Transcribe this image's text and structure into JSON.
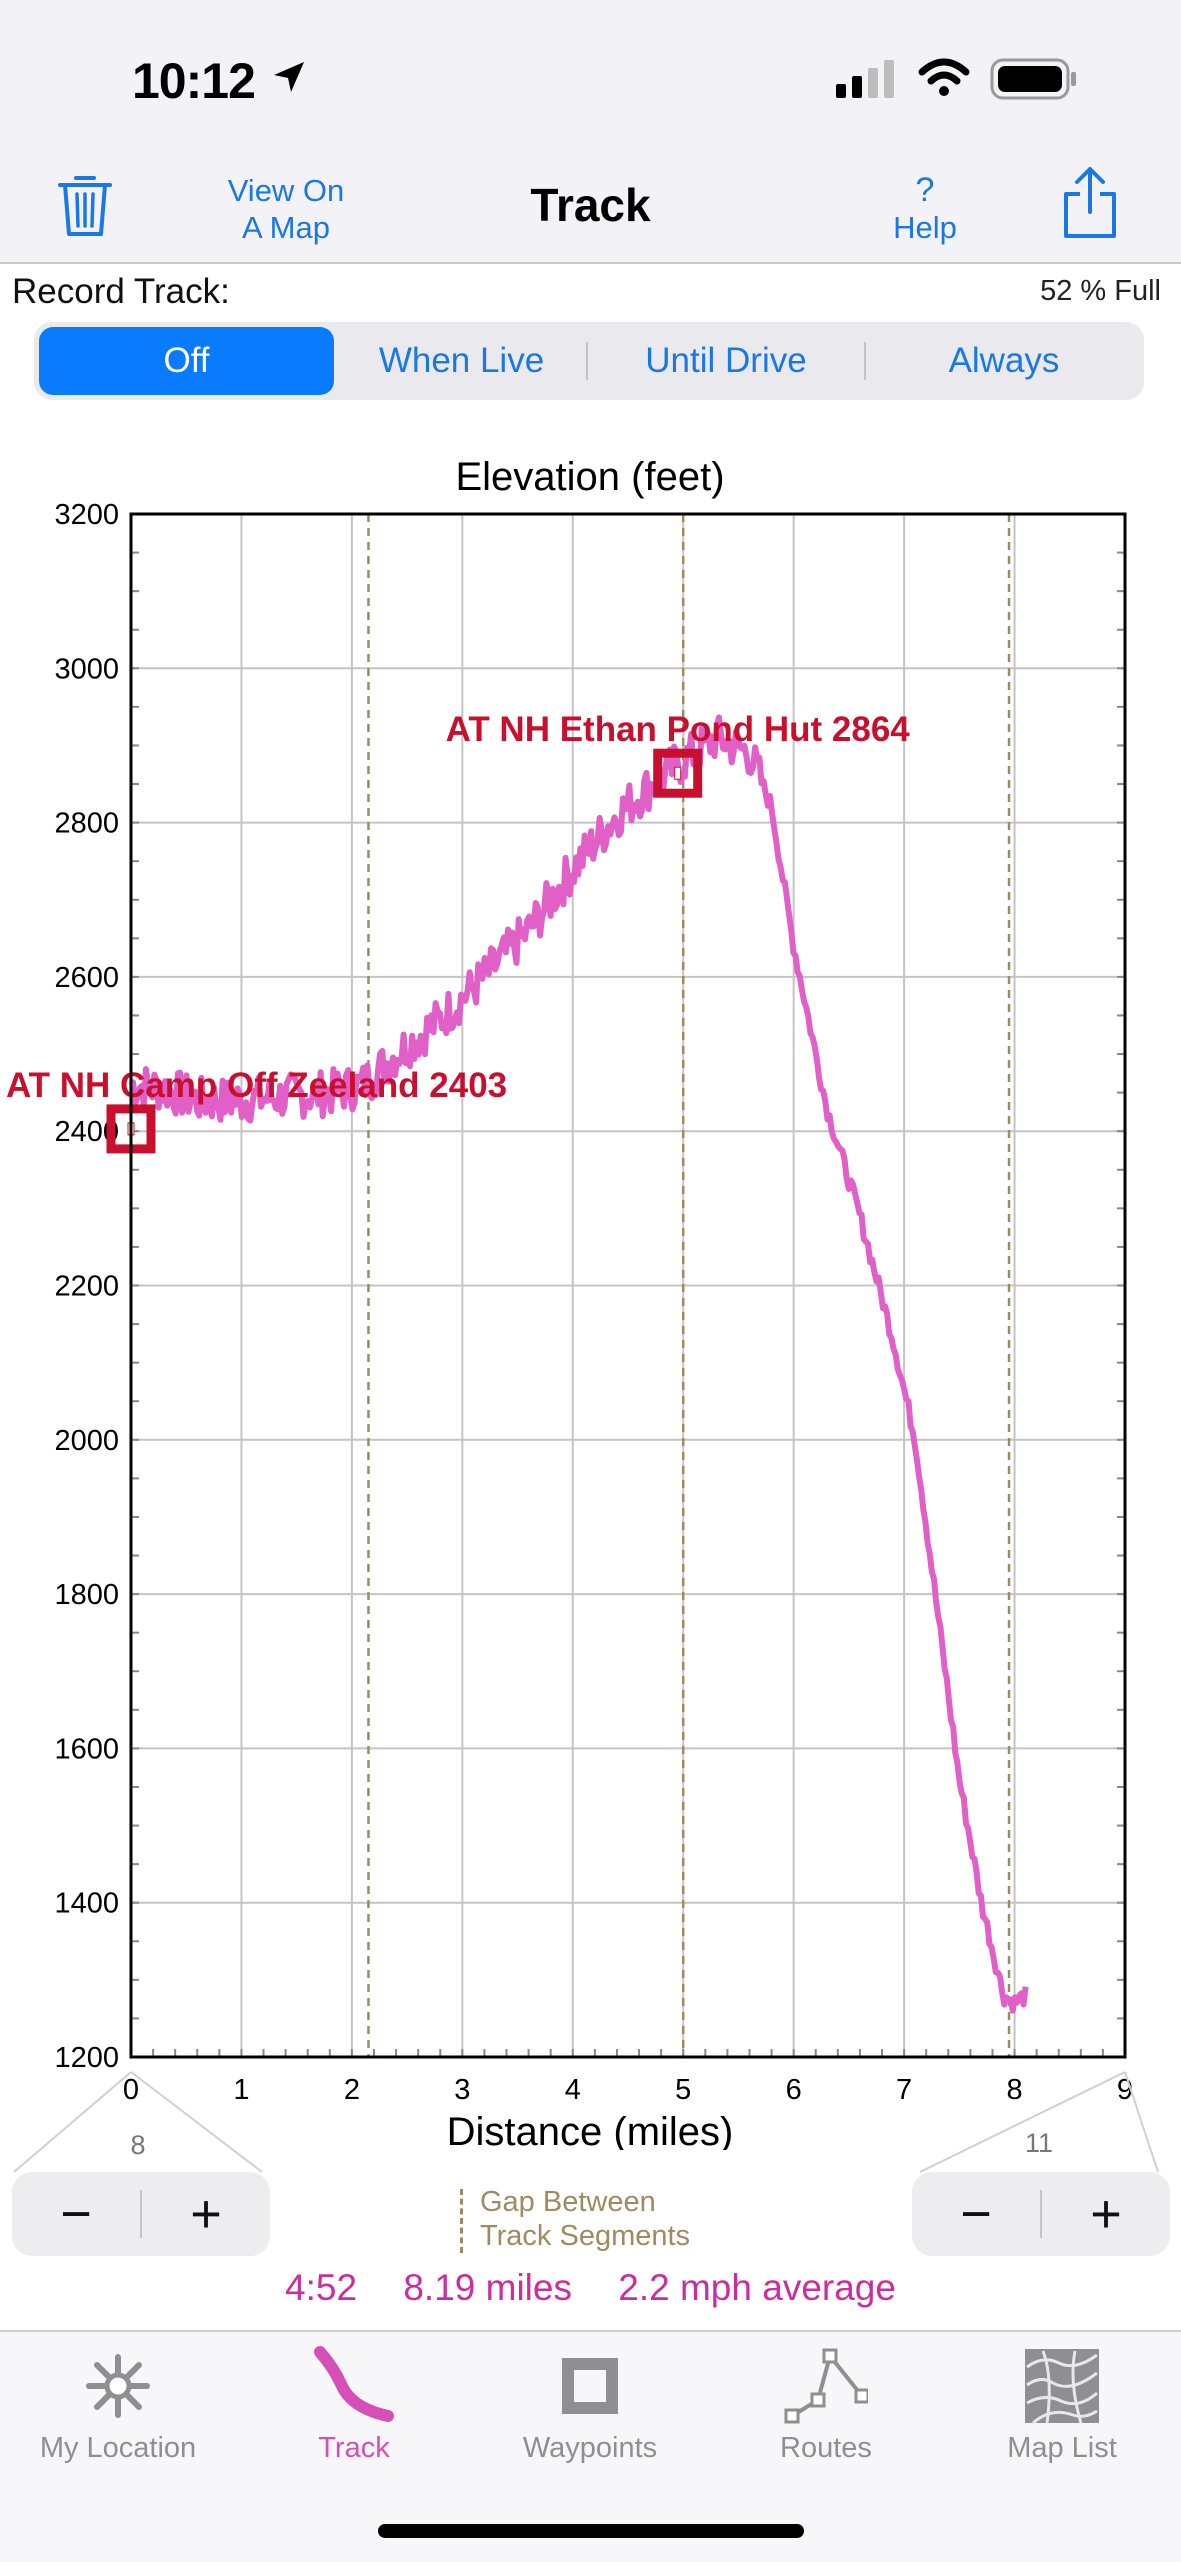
{
  "status_bar": {
    "time": "10:12"
  },
  "nav": {
    "view_on_map_line1": "View On",
    "view_on_map_line2": "A Map",
    "title": "Track",
    "help_symbol": "?",
    "help_label": "Help"
  },
  "record": {
    "label": "Record Track:",
    "percent_full": "52 % Full",
    "options": [
      "Off",
      "When Live",
      "Until Drive",
      "Always"
    ],
    "selected": "Off"
  },
  "chart_data": {
    "type": "line",
    "title": "Elevation (feet)",
    "xlabel": "Distance (miles)",
    "ylabel": "",
    "xlim": [
      0,
      9
    ],
    "ylim": [
      1200,
      3200
    ],
    "x_ticks": [
      "0",
      "1",
      "2",
      "3",
      "4",
      "5",
      "6",
      "7",
      "8",
      "9"
    ],
    "y_ticks": [
      "3200",
      "3000",
      "2800",
      "2600",
      "2400",
      "2200",
      "2000",
      "1800",
      "1600",
      "1400",
      "1200"
    ],
    "grid": true,
    "series": [
      {
        "color": "#e060c8",
        "x": [
          0,
          0.3,
          0.6,
          1.0,
          1.4,
          1.8,
          2.1,
          2.4,
          2.8,
          3.2,
          3.6,
          4.0,
          4.4,
          4.8,
          5.0,
          5.3,
          5.6,
          5.8,
          6.0,
          6.3,
          6.6,
          6.9,
          7.1,
          7.3,
          7.5,
          7.7,
          7.9,
          8.0,
          8.1
        ],
        "y": [
          2460,
          2455,
          2440,
          2440,
          2445,
          2450,
          2460,
          2500,
          2545,
          2600,
          2660,
          2740,
          2810,
          2860,
          2880,
          2910,
          2890,
          2820,
          2640,
          2430,
          2290,
          2130,
          2000,
          1780,
          1560,
          1400,
          1280,
          1270,
          1280
        ]
      }
    ],
    "segment_gaps_x": [
      2.15,
      5.0,
      7.95
    ],
    "waypoints": [
      {
        "label": "AT NH Camp Off Zeeland 2403",
        "x": 0,
        "y": 2403
      },
      {
        "label": "AT NH Ethan Pond Hut 2864",
        "x": 4.95,
        "y": 2864
      }
    ]
  },
  "zoom": {
    "left_value": "8",
    "right_value": "11",
    "minus": "−",
    "plus": "+"
  },
  "gap_legend": {
    "line1": "Gap Between",
    "line2": "Track Segments"
  },
  "stats": {
    "time": "4:52",
    "distance": "8.19 miles",
    "speed": "2.2 mph average"
  },
  "tabs": [
    {
      "label": "My Location",
      "icon": "asterisk-icon"
    },
    {
      "label": "Track",
      "icon": "track-line-icon",
      "active": true
    },
    {
      "label": "Waypoints",
      "icon": "waypoint-square-icon"
    },
    {
      "label": "Routes",
      "icon": "route-icon"
    },
    {
      "label": "Map List",
      "icon": "map-list-icon"
    }
  ],
  "colors": {
    "accent": "#0a7aff",
    "track": "#e060c8",
    "waypoint": "#c8102e",
    "gap": "#a08a60"
  }
}
